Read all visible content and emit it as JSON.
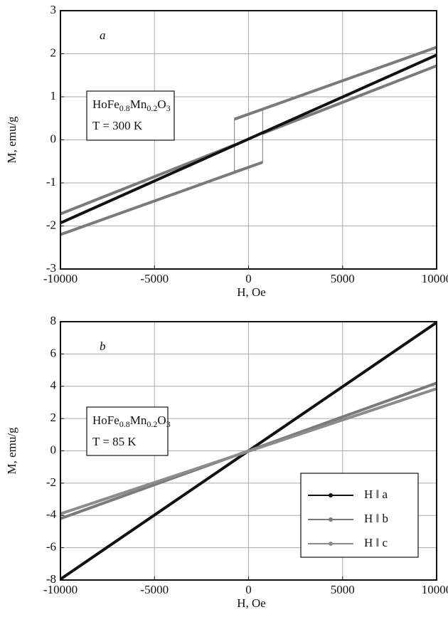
{
  "chart_data": [
    {
      "type": "line",
      "label": "a",
      "xlabel": "H, Oe",
      "ylabel": "M, emu/g",
      "formula": [
        "HoFe",
        "0.8",
        "Mn",
        "0.2",
        "O",
        "3"
      ],
      "annotation": "T = 300 K",
      "xlim": [
        -10000,
        10000
      ],
      "xticks": [
        -10000,
        -5000,
        0,
        5000,
        10000
      ],
      "ylim": [
        -3,
        3
      ],
      "yticks": [
        -3,
        -2,
        -1,
        0,
        1,
        2,
        3
      ],
      "grid": true,
      "series": [
        {
          "color": "#7a7a7a",
          "width": 4,
          "x": [
            -750,
            10000
          ],
          "values": [
            0.48,
            2.15
          ]
        },
        {
          "color": "#7a7a7a",
          "width": 4,
          "x": [
            -10000,
            750
          ],
          "values": [
            -2.2,
            -0.52
          ]
        },
        {
          "color": "#7a7a7a",
          "width": 4,
          "x": [
            -10000,
            -750
          ],
          "values": [
            -1.72,
            -0.12
          ]
        },
        {
          "color": "#7a7a7a",
          "width": 4,
          "x": [
            750,
            10000
          ],
          "values": [
            0.15,
            1.72
          ]
        },
        {
          "color": "#7a7a7a",
          "width": 1,
          "x": [
            -750,
            -750,
            750,
            750,
            -750
          ],
          "values": [
            0.48,
            -0.72,
            -0.52,
            0.7,
            0.48
          ]
        },
        {
          "color": "#111111",
          "width": 4,
          "x": [
            -10000,
            10000
          ],
          "values": [
            -1.93,
            1.97
          ]
        }
      ]
    },
    {
      "type": "line",
      "label": "b",
      "xlabel": "H, Oe",
      "ylabel": "M, emu/g",
      "formula": [
        "HoFe",
        "0.8",
        "Mn",
        "0.2",
        "O",
        "3"
      ],
      "annotation": "T = 85 K",
      "xlim": [
        -10000,
        10000
      ],
      "xticks": [
        -10000,
        -5000,
        0,
        5000,
        10000
      ],
      "ylim": [
        -8,
        8
      ],
      "yticks": [
        -8,
        -6,
        -4,
        -2,
        0,
        2,
        4,
        6,
        8
      ],
      "grid": true,
      "legend": "lower right",
      "series": [
        {
          "name": "H ‖ a",
          "color": "#111111",
          "width": 4,
          "x": [
            -10000,
            10000
          ],
          "values": [
            -7.95,
            7.95
          ]
        },
        {
          "name": "H ‖ b",
          "color": "#7a7a7a",
          "width": 4,
          "x": [
            -10000,
            10000
          ],
          "values": [
            -4.2,
            4.2
          ]
        },
        {
          "name": "H ‖ c",
          "color": "#8c8c8c",
          "width": 4,
          "x": [
            -10000,
            10000
          ],
          "values": [
            -3.9,
            3.85
          ]
        }
      ]
    }
  ]
}
